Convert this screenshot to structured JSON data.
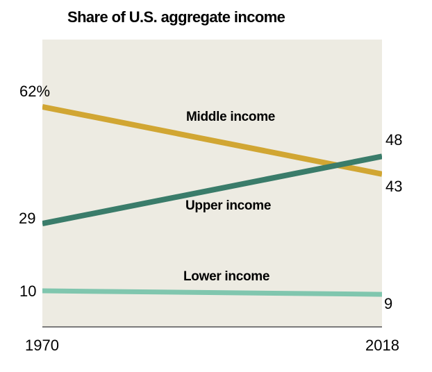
{
  "title": "Share of U.S. aggregate income",
  "chart_data": {
    "type": "line",
    "x": [
      1970,
      2018
    ],
    "xticklabels": [
      "1970",
      "2018"
    ],
    "title": "Share of U.S. aggregate income",
    "xlabel": "",
    "ylabel": "",
    "ylim": [
      0,
      81
    ],
    "grid": false,
    "legend_position": "inline-labels",
    "plot_bg": "#edebe2",
    "axis_color": "#7a7a7a",
    "series": [
      {
        "name": "Middle income",
        "values": [
          62,
          43
        ],
        "color": "#d1a633",
        "start_label": "62%",
        "end_label": "43"
      },
      {
        "name": "Upper income",
        "values": [
          29,
          48
        ],
        "color": "#3a7c6a",
        "start_label": "29",
        "end_label": "48"
      },
      {
        "name": "Lower income",
        "values": [
          10,
          9
        ],
        "color": "#80c6ae",
        "start_label": "10",
        "end_label": "9"
      }
    ]
  }
}
